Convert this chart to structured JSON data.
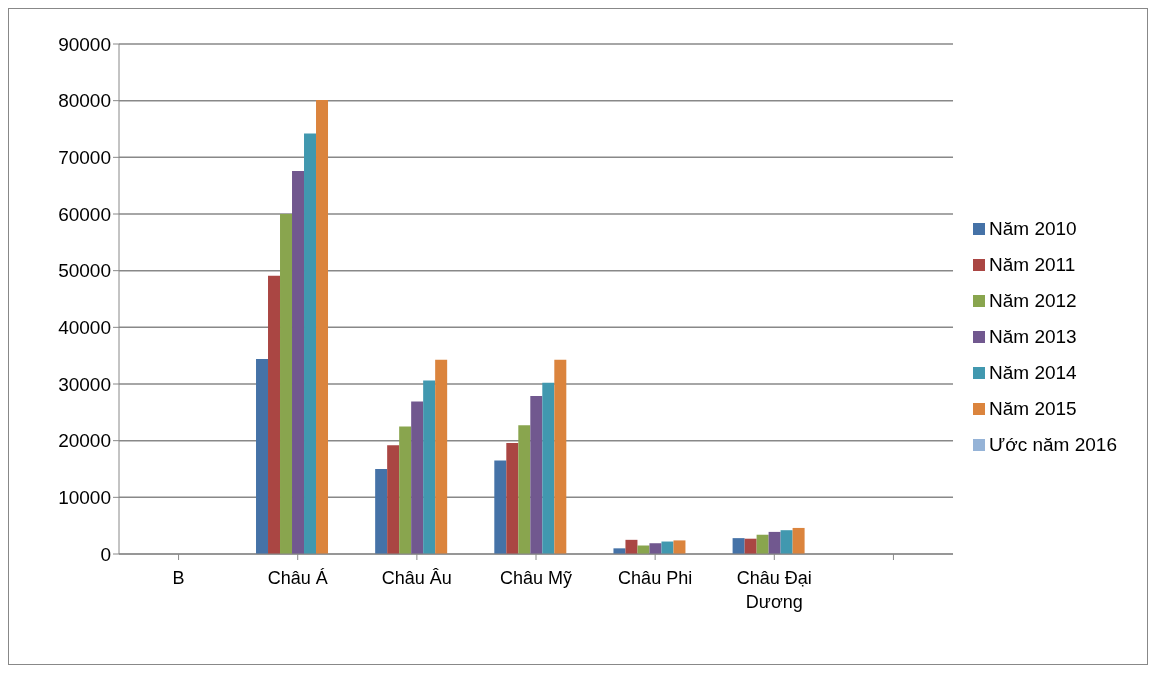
{
  "chart_data": {
    "type": "bar",
    "categories": [
      "B",
      "Châu Á",
      "Châu Âu",
      "Châu Mỹ",
      "Châu Phi",
      "Châu Đại Dương",
      null
    ],
    "series": [
      {
        "name": "Năm 2010",
        "color": "#4572a7",
        "values": [
          null,
          34400,
          15000,
          16500,
          1000,
          2800,
          null
        ]
      },
      {
        "name": "Năm 2011",
        "color": "#aa4643",
        "values": [
          null,
          49100,
          19200,
          19600,
          2500,
          2700,
          null
        ]
      },
      {
        "name": "Năm 2012",
        "color": "#89a54e",
        "values": [
          null,
          60000,
          22500,
          22700,
          1500,
          3400,
          null
        ]
      },
      {
        "name": "Năm 2013",
        "color": "#71588f",
        "values": [
          null,
          67600,
          26900,
          27900,
          1900,
          3900,
          null
        ]
      },
      {
        "name": "Năm 2014",
        "color": "#4198af",
        "values": [
          null,
          74200,
          30600,
          30200,
          2200,
          4200,
          null
        ]
      },
      {
        "name": "Năm 2015",
        "color": "#db843d",
        "values": [
          null,
          80100,
          34300,
          34300,
          2400,
          4600,
          null
        ]
      },
      {
        "name": "Ước năm 2016",
        "color": "#95b3d7",
        "values": [
          null,
          null,
          null,
          null,
          null,
          null,
          null
        ]
      }
    ],
    "ylim": [
      0,
      90000
    ],
    "yticks": [
      0,
      10000,
      20000,
      30000,
      40000,
      50000,
      60000,
      70000,
      80000,
      90000
    ],
    "grid": "y",
    "legend": "right"
  }
}
